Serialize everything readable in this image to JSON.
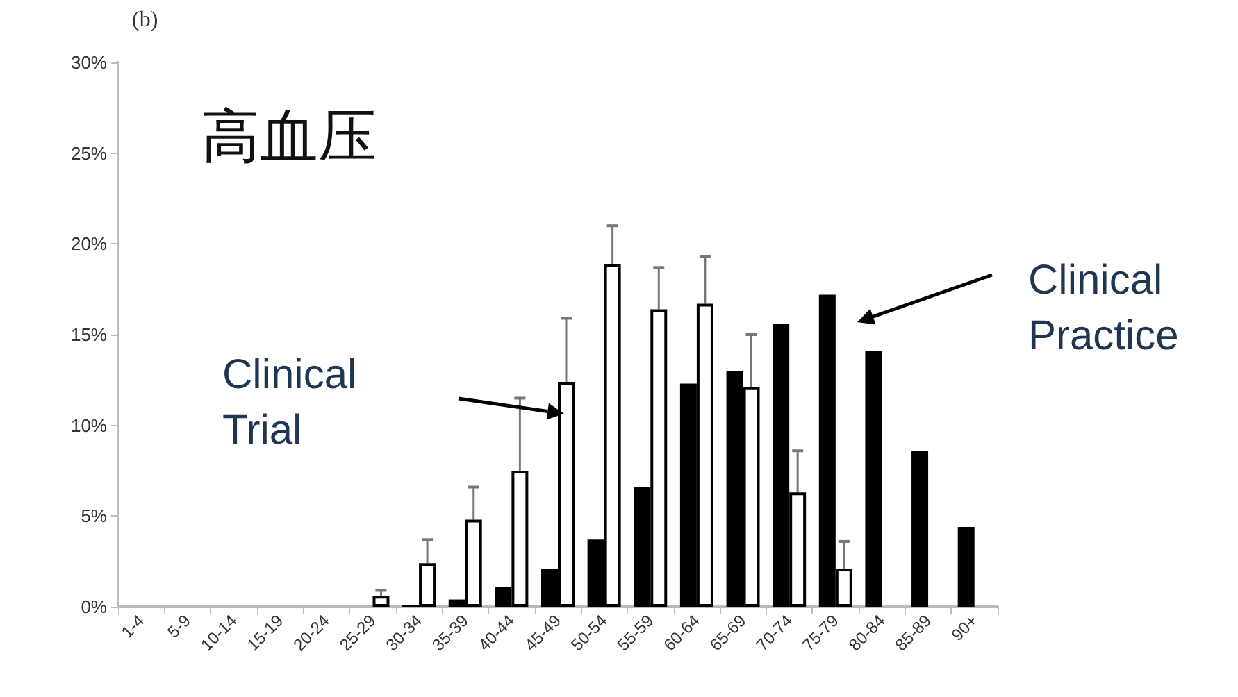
{
  "chart_data": {
    "type": "bar",
    "title": "高血压",
    "annotations": [
      "(b)",
      "Clinical\nTrial",
      "Clinical\nPractice"
    ],
    "categories": [
      "1-4",
      "5-9",
      "10-14",
      "15-19",
      "20-24",
      "25-29",
      "30-34",
      "35-39",
      "40-44",
      "45-49",
      "50-54",
      "55-59",
      "60-64",
      "65-69",
      "70-74",
      "75-79",
      "80-84",
      "85-89",
      "90+"
    ],
    "series": [
      {
        "color": "#000000",
        "values": [
          0,
          0,
          0,
          0,
          0,
          0,
          0.1,
          0.4,
          1.1,
          2.1,
          3.7,
          6.6,
          12.3,
          13.0,
          15.6,
          17.2,
          14.1,
          8.6,
          4.4
        ]
      },
      {
        "color": "#ffffff",
        "values": [
          0,
          0,
          0,
          0,
          0,
          0.6,
          2.4,
          4.8,
          7.5,
          12.4,
          18.9,
          16.4,
          16.7,
          12.1,
          6.3,
          2.1,
          0,
          0,
          0
        ],
        "errors": [
          null,
          null,
          null,
          null,
          null,
          [
            0.6,
            0.9
          ],
          [
            2.4,
            3.7
          ],
          [
            4.8,
            6.6
          ],
          [
            7.5,
            11.5
          ],
          [
            12.4,
            15.9
          ],
          [
            18.9,
            21
          ],
          [
            16.4,
            18.7
          ],
          [
            16.7,
            19.3
          ],
          [
            12.1,
            15.0
          ],
          [
            6.3,
            8.6
          ],
          [
            2.1,
            3.6
          ],
          null,
          null,
          null
        ]
      }
    ],
    "ylim": [
      0,
      30
    ],
    "yticks": [
      {
        "value": 0,
        "label": "0%"
      },
      {
        "value": 5,
        "label": "5%"
      },
      {
        "value": 10,
        "label": "10%"
      },
      {
        "value": 15,
        "label": "15%"
      },
      {
        "value": 20,
        "label": "20%"
      },
      {
        "value": 25,
        "label": "25%"
      },
      {
        "value": 30,
        "label": "30%"
      }
    ],
    "grid": false
  }
}
